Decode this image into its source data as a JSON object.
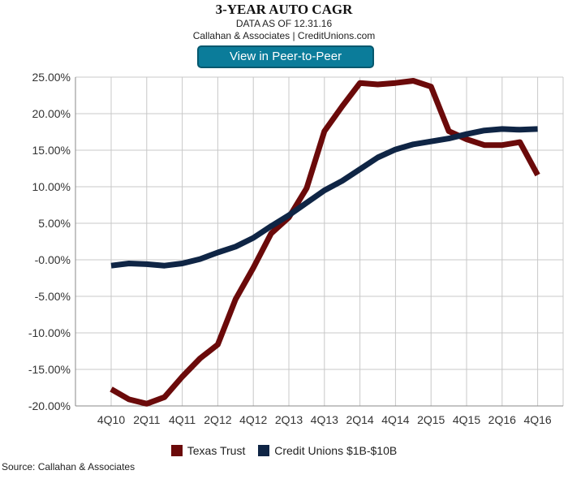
{
  "header": {
    "title": "3-YEAR AUTO CAGR",
    "date_line": "DATA AS OF 12.31.16",
    "attribution": "Callahan & Associates | CreditUnions.com",
    "button_label": "View in Peer-to-Peer"
  },
  "source_note": "Source: Callahan & Associates",
  "colors": {
    "button_bg": "#0b7c9a",
    "texas_trust": "#6b0a0a",
    "credit_unions": "#0f2545",
    "grid": "#c8c8c8",
    "axis": "#888888"
  },
  "chart_data": {
    "type": "line",
    "title": "3-YEAR AUTO CAGR",
    "xlabel": "",
    "ylabel": "",
    "ylim": [
      -20,
      25
    ],
    "yticks": [
      25,
      20,
      15,
      10,
      5,
      0,
      -5,
      -10,
      -15,
      -20
    ],
    "ytick_labels": [
      "25.00%",
      "20.00%",
      "15.00%",
      "10.00%",
      "5.00%",
      "-0.00%",
      "-5.00%",
      "-10.00%",
      "-15.00%",
      "-20.00%"
    ],
    "grid": true,
    "legend_position": "bottom",
    "x": [
      "4Q10",
      "1Q11",
      "2Q11",
      "3Q11",
      "4Q11",
      "1Q12",
      "2Q12",
      "3Q12",
      "4Q12",
      "1Q13",
      "2Q13",
      "3Q13",
      "4Q13",
      "1Q14",
      "2Q14",
      "3Q14",
      "4Q14",
      "1Q15",
      "2Q15",
      "3Q15",
      "4Q15",
      "1Q16",
      "2Q16",
      "3Q16",
      "4Q16"
    ],
    "x_tick_labels": [
      "4Q10",
      "2Q11",
      "4Q11",
      "2Q12",
      "4Q12",
      "2Q13",
      "4Q13",
      "2Q14",
      "4Q14",
      "2Q15",
      "4Q15",
      "2Q16",
      "4Q16"
    ],
    "series": [
      {
        "name": "Texas Trust",
        "values": [
          -17.7,
          -19.1,
          -19.7,
          -18.8,
          -16.0,
          -13.5,
          -11.6,
          -5.4,
          -1.1,
          3.6,
          5.8,
          9.8,
          17.6,
          21.0,
          24.2,
          24.0,
          24.2,
          24.5,
          23.7,
          17.6,
          16.5,
          15.7,
          15.7,
          16.1,
          11.6
        ]
      },
      {
        "name": "Credit Unions $1B-$10B",
        "values": [
          -0.8,
          -0.5,
          -0.6,
          -0.8,
          -0.5,
          0.1,
          1.0,
          1.8,
          3.0,
          4.6,
          6.1,
          7.8,
          9.5,
          10.8,
          12.4,
          14.0,
          15.1,
          15.8,
          16.2,
          16.6,
          17.2,
          17.7,
          17.9,
          17.8,
          17.9
        ]
      }
    ]
  }
}
